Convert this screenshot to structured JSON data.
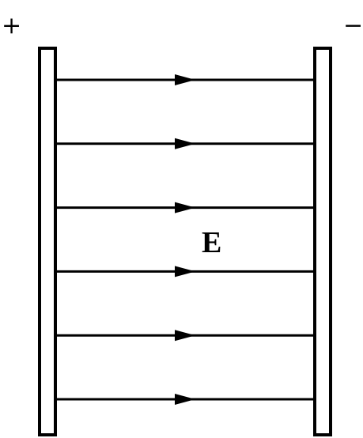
{
  "labels": {
    "positive": "+",
    "negative": "−",
    "field": "E"
  },
  "field_lines": {
    "count": 6,
    "direction": "left-to-right"
  },
  "colors": {
    "stroke": "#000000",
    "background": "#ffffff"
  }
}
